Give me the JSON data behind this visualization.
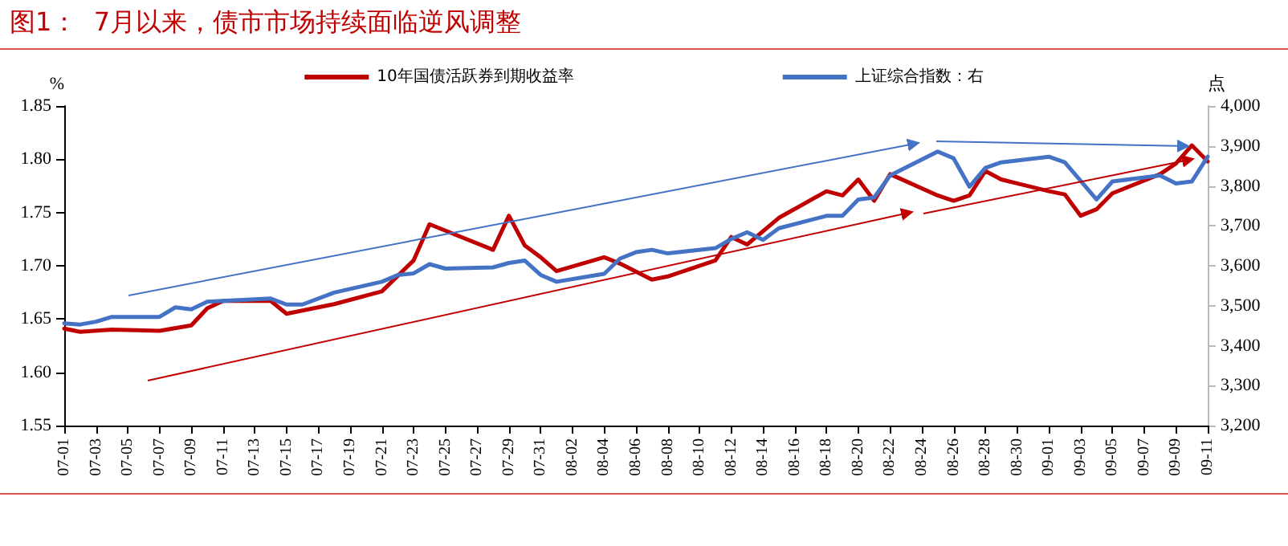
{
  "chart_data": {
    "type": "line",
    "title": "图1：  7月以来，债市市场持续面临逆风调整",
    "ylabel": "%",
    "y2label": "点",
    "xlim": [
      "--07-01",
      "--09-11"
    ],
    "xticks": [
      {
        "value": "--07-01",
        "label": "07-01"
      },
      {
        "value": "--07-03",
        "label": "07-03"
      },
      {
        "value": "--07-05",
        "label": "07-05"
      },
      {
        "value": "--07-07",
        "label": "07-07"
      },
      {
        "value": "--07-09",
        "label": "07-09"
      },
      {
        "value": "--07-11",
        "label": "07-11"
      },
      {
        "value": "--07-13",
        "label": "07-13"
      },
      {
        "value": "--07-15",
        "label": "07-15"
      },
      {
        "value": "--07-17",
        "label": "07-17"
      },
      {
        "value": "--07-19",
        "label": "07-19"
      },
      {
        "value": "--07-21",
        "label": "07-21"
      },
      {
        "value": "--07-23",
        "label": "07-23"
      },
      {
        "value": "--07-25",
        "label": "07-25"
      },
      {
        "value": "--07-27",
        "label": "07-27"
      },
      {
        "value": "--07-29",
        "label": "07-29"
      },
      {
        "value": "--07-31",
        "label": "07-31"
      },
      {
        "value": "--08-02",
        "label": "08-02"
      },
      {
        "value": "--08-04",
        "label": "08-04"
      },
      {
        "value": "--08-06",
        "label": "08-06"
      },
      {
        "value": "--08-08",
        "label": "08-08"
      },
      {
        "value": "--08-10",
        "label": "08-10"
      },
      {
        "value": "--08-12",
        "label": "08-12"
      },
      {
        "value": "--08-14",
        "label": "08-14"
      },
      {
        "value": "--08-16",
        "label": "08-16"
      },
      {
        "value": "--08-18",
        "label": "08-18"
      },
      {
        "value": "--08-20",
        "label": "08-20"
      },
      {
        "value": "--08-22",
        "label": "08-22"
      },
      {
        "value": "--08-24",
        "label": "08-24"
      },
      {
        "value": "--08-26",
        "label": "08-26"
      },
      {
        "value": "--08-28",
        "label": "08-28"
      },
      {
        "value": "--08-30",
        "label": "08-30"
      },
      {
        "value": "--09-01",
        "label": "09-01"
      },
      {
        "value": "--09-03",
        "label": "09-03"
      },
      {
        "value": "--09-05",
        "label": "09-05"
      },
      {
        "value": "--09-07",
        "label": "09-07"
      },
      {
        "value": "--09-09",
        "label": "09-09"
      },
      {
        "value": "--09-11",
        "label": "09-11"
      }
    ],
    "ylim": [
      1.55,
      1.85
    ],
    "yticks": [
      {
        "value": 1.55,
        "label": "1.55"
      },
      {
        "value": 1.6,
        "label": "1.60"
      },
      {
        "value": 1.65,
        "label": "1.65"
      },
      {
        "value": 1.7,
        "label": "1.70"
      },
      {
        "value": 1.75,
        "label": "1.75"
      },
      {
        "value": 1.8,
        "label": "1.80"
      },
      {
        "value": 1.85,
        "label": "1.85"
      }
    ],
    "y2lim": [
      3200,
      4000
    ],
    "y2ticks": [
      {
        "value": 3200,
        "label": "3,200"
      },
      {
        "value": 3300,
        "label": "3,300"
      },
      {
        "value": 3400,
        "label": "3,400"
      },
      {
        "value": 3500,
        "label": "3,500"
      },
      {
        "value": 3600,
        "label": "3,600"
      },
      {
        "value": 3700,
        "label": "3,700"
      },
      {
        "value": 3800,
        "label": "3,800"
      },
      {
        "value": 3900,
        "label": "3,900"
      },
      {
        "value": 4000,
        "label": "4,000"
      }
    ],
    "grid": false,
    "legend": "top",
    "marker": "none",
    "line_style": "solid",
    "series": [
      {
        "name": "10年国债活跃券到期收益率",
        "color": "#c00000",
        "x": [
          "--07-01",
          "--07-02",
          "--07-04",
          "--07-07",
          "--07-09",
          "--07-10",
          "--07-11",
          "--07-14",
          "--07-15",
          "--07-18",
          "--07-21",
          "--07-23",
          "--07-24",
          "--07-25",
          "--07-28",
          "--07-29",
          "--07-30",
          "--07-31",
          "--08-01",
          "--08-04",
          "--08-05",
          "--08-07",
          "--08-08",
          "--08-11",
          "--08-12",
          "--08-13",
          "--08-15",
          "--08-18",
          "--08-19",
          "--08-20",
          "--08-21",
          "--08-22",
          "--08-25",
          "--08-26",
          "--08-27",
          "--08-28",
          "--08-29",
          "--09-01",
          "--09-02",
          "--09-03",
          "--09-04",
          "--09-05",
          "--09-08",
          "--09-09",
          "--09-10",
          "--09-11"
        ],
        "values": [
          1.641,
          1.638,
          1.64,
          1.639,
          1.644,
          1.66,
          1.667,
          1.667,
          1.655,
          1.664,
          1.676,
          1.705,
          1.739,
          1.733,
          1.715,
          1.747,
          1.719,
          1.708,
          1.695,
          1.708,
          1.702,
          1.687,
          1.69,
          1.705,
          1.727,
          1.72,
          1.745,
          1.77,
          1.766,
          1.781,
          1.761,
          1.786,
          1.766,
          1.761,
          1.766,
          1.789,
          1.781,
          1.77,
          1.767,
          1.747,
          1.753,
          1.768,
          1.786,
          1.796,
          1.813,
          1.798
        ]
      },
      {
        "name": "上证综合指数：右",
        "color": "#4472c4",
        "axis": "y2",
        "x": [
          "--07-01",
          "--07-02",
          "--07-03",
          "--07-04",
          "--07-07",
          "--07-08",
          "--07-09",
          "--07-10",
          "--07-14",
          "--07-15",
          "--07-16",
          "--07-18",
          "--07-21",
          "--07-22",
          "--07-23",
          "--07-24",
          "--07-25",
          "--07-28",
          "--07-29",
          "--07-30",
          "--07-31",
          "--08-01",
          "--08-04",
          "--08-05",
          "--08-06",
          "--08-07",
          "--08-08",
          "--08-11",
          "--08-12",
          "--08-13",
          "--08-14",
          "--08-15",
          "--08-18",
          "--08-19",
          "--08-20",
          "--08-21",
          "--08-22",
          "--08-25",
          "--08-26",
          "--08-27",
          "--08-28",
          "--08-29",
          "--09-01",
          "--09-02",
          "--09-04",
          "--09-05",
          "--09-08",
          "--09-09",
          "--09-10",
          "--09-11"
        ],
        "values": [
          3456,
          3453,
          3460,
          3472,
          3472,
          3496,
          3491,
          3510,
          3518,
          3503,
          3503,
          3533,
          3560,
          3577,
          3581,
          3604,
          3593,
          3596,
          3607,
          3613,
          3577,
          3560,
          3580,
          3618,
          3634,
          3640,
          3631,
          3644,
          3667,
          3684,
          3665,
          3694,
          3725,
          3725,
          3766,
          3771,
          3826,
          3886,
          3869,
          3798,
          3845,
          3859,
          3873,
          3859,
          3766,
          3811,
          3826,
          3806,
          3811,
          3873
        ]
      }
    ]
  }
}
